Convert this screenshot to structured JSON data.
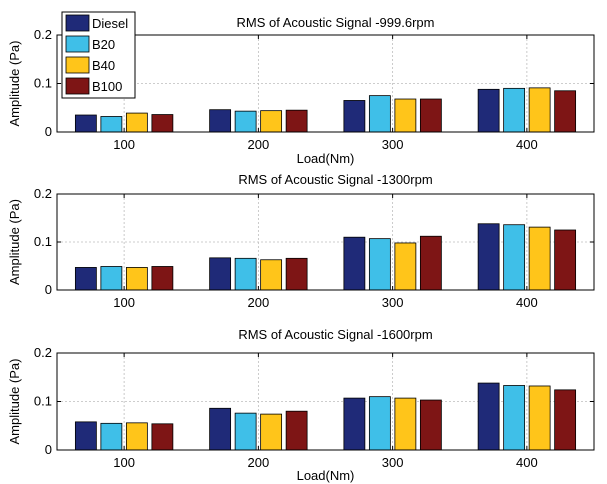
{
  "chart_data": [
    {
      "type": "bar",
      "title": "RMS of Acoustic Signal -999.6rpm",
      "xlabel": "Load(Nm)",
      "ylabel": "Amplitude (Pa)",
      "categories": [
        "100",
        "200",
        "300",
        "400"
      ],
      "ylim": [
        0,
        0.2
      ],
      "yticks": [
        "0",
        "0.1",
        "0.2"
      ],
      "grid": true,
      "legend": "top-left",
      "series": [
        {
          "name": "Diesel",
          "color": "#1f2a78",
          "values": [
            0.035,
            0.046,
            0.065,
            0.088
          ]
        },
        {
          "name": "B20",
          "color": "#3fbfe8",
          "values": [
            0.032,
            0.043,
            0.075,
            0.09
          ]
        },
        {
          "name": "B40",
          "color": "#ffc51a",
          "values": [
            0.039,
            0.044,
            0.068,
            0.091
          ]
        },
        {
          "name": "B100",
          "color": "#7e1515",
          "values": [
            0.036,
            0.045,
            0.068,
            0.085
          ]
        }
      ]
    },
    {
      "type": "bar",
      "title": "RMS of Acoustic Signal -1300rpm",
      "xlabel": "",
      "ylabel": "Amplitude (Pa)",
      "categories": [
        "100",
        "200",
        "300",
        "400"
      ],
      "ylim": [
        0,
        0.2
      ],
      "yticks": [
        "0",
        "0.1",
        "0.2"
      ],
      "grid": true,
      "series": [
        {
          "name": "Diesel",
          "color": "#1f2a78",
          "values": [
            0.047,
            0.067,
            0.11,
            0.138
          ]
        },
        {
          "name": "B20",
          "color": "#3fbfe8",
          "values": [
            0.049,
            0.066,
            0.107,
            0.136
          ]
        },
        {
          "name": "B40",
          "color": "#ffc51a",
          "values": [
            0.047,
            0.063,
            0.098,
            0.131
          ]
        },
        {
          "name": "B100",
          "color": "#7e1515",
          "values": [
            0.049,
            0.066,
            0.112,
            0.125
          ]
        }
      ]
    },
    {
      "type": "bar",
      "title": "RMS of Acoustic Signal -1600rpm",
      "xlabel": "Load(Nm)",
      "ylabel": "Amplitude (Pa)",
      "categories": [
        "100",
        "200",
        "300",
        "400"
      ],
      "ylim": [
        0,
        0.2
      ],
      "yticks": [
        "0",
        "0.1",
        "0.2"
      ],
      "grid": true,
      "series": [
        {
          "name": "Diesel",
          "color": "#1f2a78",
          "values": [
            0.058,
            0.086,
            0.107,
            0.138
          ]
        },
        {
          "name": "B20",
          "color": "#3fbfe8",
          "values": [
            0.055,
            0.076,
            0.11,
            0.133
          ]
        },
        {
          "name": "B40",
          "color": "#ffc51a",
          "values": [
            0.056,
            0.074,
            0.107,
            0.132
          ]
        },
        {
          "name": "B100",
          "color": "#7e1515",
          "values": [
            0.054,
            0.08,
            0.103,
            0.124
          ]
        }
      ]
    }
  ]
}
